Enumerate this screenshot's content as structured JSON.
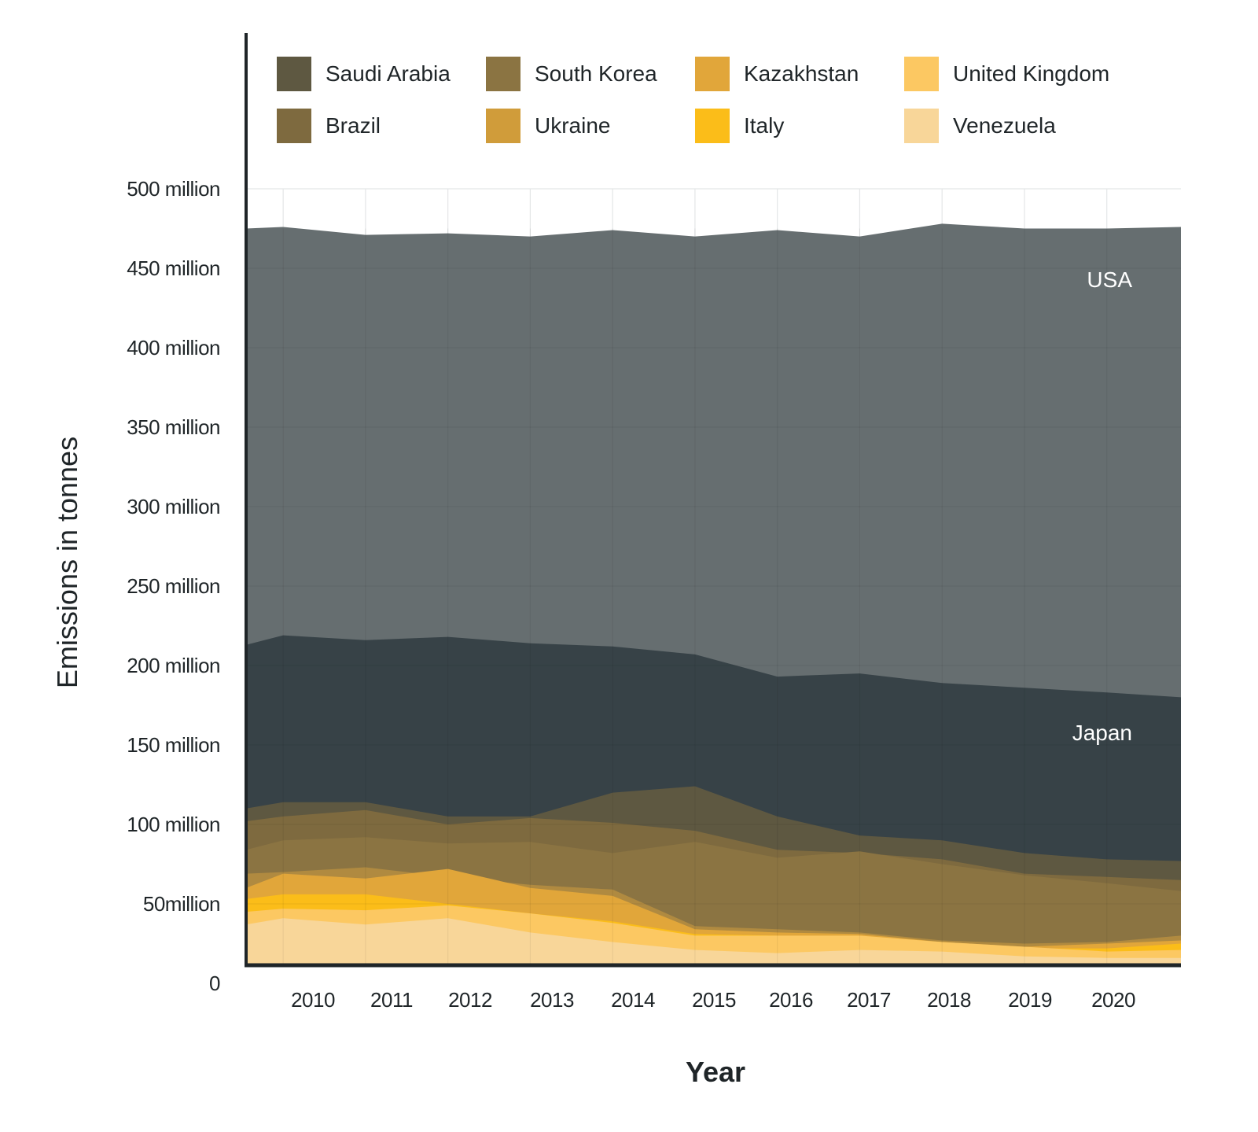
{
  "chart_data": {
    "type": "area",
    "title": "",
    "xlabel": "Year",
    "ylabel": "Emissions in tonnes",
    "x_tick_labels": [
      "2010",
      "2011",
      "2012",
      "2013",
      "2014",
      "2015",
      "2016",
      "2017",
      "2018",
      "2019",
      "2020"
    ],
    "x": [
      2009.1,
      2009.55,
      2010.55,
      2011.55,
      2012.55,
      2013.55,
      2014.55,
      2015.55,
      2016.55,
      2017.55,
      2018.55,
      2019.55,
      2020.45
    ],
    "xlim": [
      2009.1,
      2020.45
    ],
    "y_tick_values": [
      0,
      50,
      100,
      150,
      200,
      250,
      300,
      350,
      400,
      450,
      500
    ],
    "y_tick_labels": [
      "0",
      "50million",
      "100 million",
      "150 million",
      "200 million",
      "250 million",
      "300 million",
      "350 million",
      "400 million",
      "450 million",
      "500 million"
    ],
    "ylim": [
      0,
      500
    ],
    "units": "million tonnes",
    "grid": true,
    "legend_position": "top",
    "series": [
      {
        "name": "USA",
        "color": "#666e70",
        "labeled_in_plot": true,
        "values": [
          475,
          476,
          471,
          472,
          470,
          474,
          470,
          474,
          470,
          478,
          475,
          475,
          476
        ]
      },
      {
        "name": "Japan",
        "color": "#374247",
        "labeled_in_plot": true,
        "values": [
          213,
          219,
          216,
          218,
          214,
          212,
          207,
          193,
          195,
          189,
          186,
          183,
          180
        ]
      },
      {
        "name": "Saudi Arabia",
        "color": "#5e5841",
        "values": [
          110,
          114,
          114,
          105,
          105,
          120,
          124,
          105,
          93,
          90,
          82,
          78,
          77
        ]
      },
      {
        "name": "Brazil",
        "color": "#7e6a3f",
        "values": [
          102,
          105,
          109,
          100,
          104,
          101,
          96,
          84,
          82,
          78,
          69,
          67,
          65
        ]
      },
      {
        "name": "South Korea",
        "color": "#8b7442",
        "values": [
          84,
          90,
          92,
          88,
          89,
          82,
          89,
          79,
          83,
          75,
          68,
          63,
          58
        ]
      },
      {
        "name": "Ukraine",
        "color": "#b08a40",
        "values": [
          69,
          70,
          73,
          67,
          62,
          59,
          36,
          34,
          32,
          27,
          25,
          26,
          30
        ]
      },
      {
        "name": "Kazakhstan",
        "color": "#e1a63a",
        "values": [
          60,
          69,
          66,
          72,
          60,
          55,
          34,
          32,
          31,
          26,
          23,
          25,
          27
        ]
      },
      {
        "name": "Italy",
        "color": "#fbbd19",
        "values": [
          53,
          56,
          56,
          50,
          44,
          39,
          31,
          30,
          29,
          26,
          22,
          22,
          25
        ]
      },
      {
        "name": "United Kingdom",
        "color": "#fcc862",
        "values": [
          45,
          47,
          46,
          49,
          44,
          38,
          30,
          30,
          30,
          26,
          23,
          20,
          21
        ]
      },
      {
        "name": "Venezuela",
        "color": "#f8d699",
        "values": [
          37,
          41,
          37,
          41,
          32,
          26,
          21,
          19,
          21,
          20,
          17,
          16,
          16
        ]
      }
    ]
  },
  "legend": [
    {
      "name": "Saudi Arabia",
      "color": "#5e5841"
    },
    {
      "name": "South Korea",
      "color": "#8b7442"
    },
    {
      "name": "Kazakhstan",
      "color": "#e1a63a"
    },
    {
      "name": "United Kingdom",
      "color": "#fcc862"
    },
    {
      "name": "Brazil",
      "color": "#7e6a3f"
    },
    {
      "name": "Ukraine",
      "color": "#d09c3a"
    },
    {
      "name": "Italy",
      "color": "#fbbd19"
    },
    {
      "name": "Venezuela",
      "color": "#f8d699"
    }
  ],
  "annotations": {
    "usa": "USA",
    "japan": "Japan"
  }
}
